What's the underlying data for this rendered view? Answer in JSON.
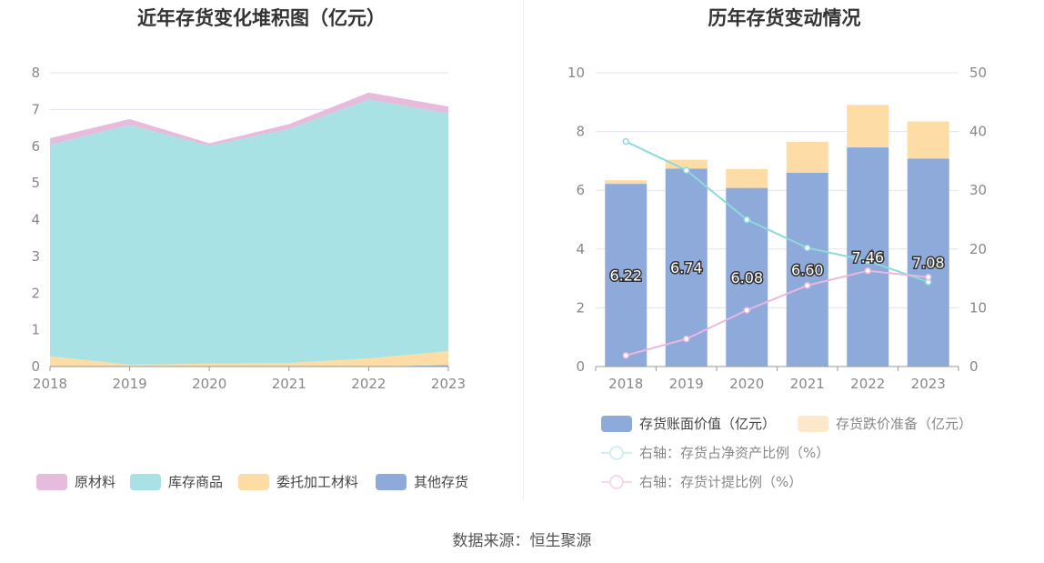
{
  "source_label": "数据来源：恒生聚源",
  "chart_data": [
    {
      "type": "area",
      "title": "近年存货变化堆积图（亿元）",
      "x": [
        "2018",
        "2019",
        "2020",
        "2021",
        "2022",
        "2023"
      ],
      "ylim": [
        0,
        8
      ],
      "yticks": [
        "0",
        "1",
        "2",
        "3",
        "4",
        "5",
        "6",
        "7",
        "8"
      ],
      "legend_position": "bottom",
      "series": [
        {
          "name": "其他存货",
          "color": "#8eaadb",
          "values": [
            0.0,
            0.0,
            0.0,
            0.0,
            0.0,
            0.04
          ]
        },
        {
          "name": "委托加工材料",
          "color": "#fedca5",
          "values": [
            0.28,
            0.05,
            0.08,
            0.1,
            0.22,
            0.38
          ]
        },
        {
          "name": "库存商品",
          "color": "#a9e2e5",
          "values": [
            5.76,
            6.53,
            5.93,
            6.37,
            7.05,
            6.47
          ]
        },
        {
          "name": "原材料",
          "color": "#e6bbdc",
          "values": [
            0.18,
            0.16,
            0.07,
            0.13,
            0.19,
            0.19
          ]
        }
      ],
      "legend_order": [
        "原材料",
        "库存商品",
        "委托加工材料",
        "其他存货"
      ]
    },
    {
      "type": "bar",
      "title": "历年存货变动情况",
      "categories": [
        "2018",
        "2019",
        "2020",
        "2021",
        "2022",
        "2023"
      ],
      "ylim_left": [
        0,
        10
      ],
      "yticks_left": [
        "0",
        "2",
        "4",
        "6",
        "8",
        "10"
      ],
      "ylim_right": [
        0,
        50
      ],
      "yticks_right": [
        "0",
        "10",
        "20",
        "30",
        "40",
        "50"
      ],
      "legend_position": "bottom",
      "series": [
        {
          "name": "存货账面价值（亿元）",
          "kind": "bar",
          "axis": "left",
          "color": "#8eaadb",
          "values": [
            6.22,
            6.74,
            6.08,
            6.6,
            7.46,
            7.08
          ],
          "labels": [
            "6.22",
            "6.74",
            "6.08",
            "6.60",
            "7.46",
            "7.08"
          ]
        },
        {
          "name": "存货跌价准备（亿元）",
          "kind": "bar",
          "axis": "left",
          "color": "#fedca5",
          "values": [
            0.12,
            0.3,
            0.64,
            1.05,
            1.45,
            1.26
          ]
        },
        {
          "name": "右轴：存货占净资产比例（%）",
          "kind": "line",
          "axis": "right",
          "color": "#8fd9dc",
          "values": [
            38.3,
            33.4,
            25.0,
            20.2,
            18.0,
            14.4
          ]
        },
        {
          "name": "右轴：存货计提比例（%）",
          "kind": "line",
          "axis": "right",
          "color": "#eab8dc",
          "values": [
            1.9,
            4.7,
            9.6,
            13.8,
            16.3,
            15.2
          ]
        }
      ]
    }
  ]
}
